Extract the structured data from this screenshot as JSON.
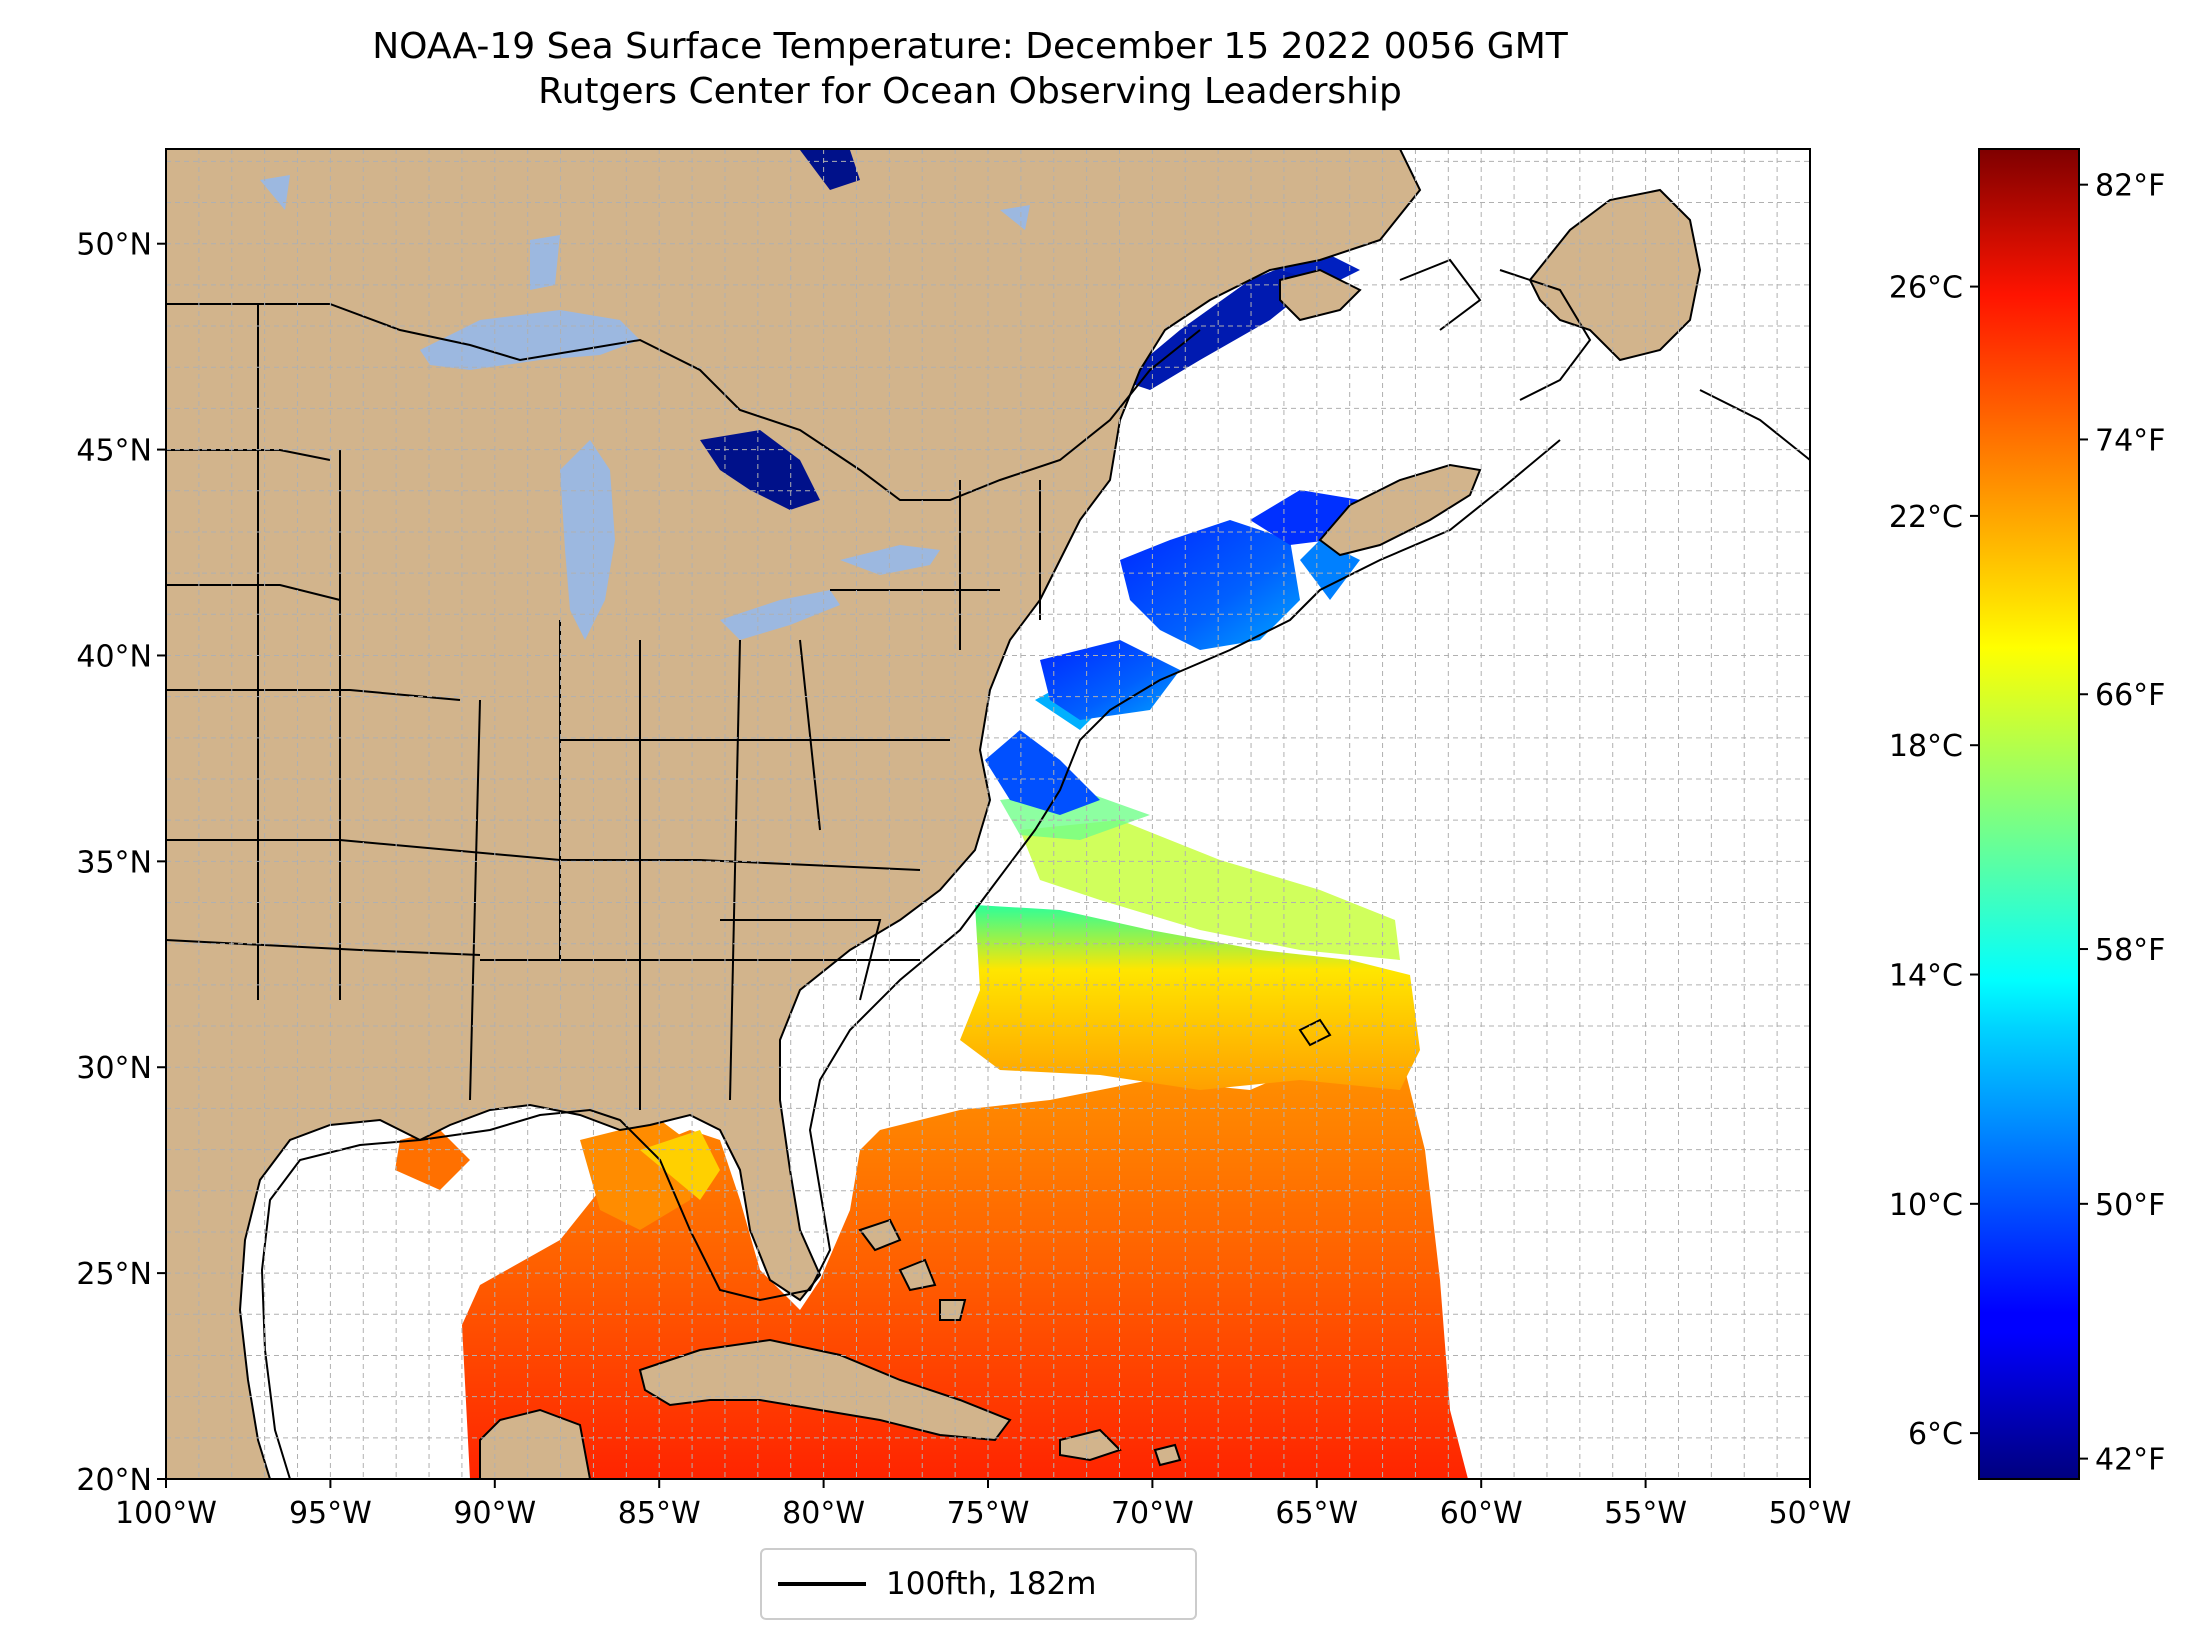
{
  "title": {
    "line1": "NOAA-19 Sea Surface Temperature: December 15 2022 0056 GMT",
    "line2": "Rutgers Center for Ocean Observing Leadership"
  },
  "map": {
    "extent": {
      "lon": [
        -100,
        -50
      ],
      "lat": [
        20,
        52.3
      ]
    },
    "latitude_ticks": [
      "20°N",
      "25°N",
      "30°N",
      "35°N",
      "40°N",
      "45°N",
      "50°N"
    ],
    "latitude_values": [
      20,
      25,
      30,
      35,
      40,
      45,
      50
    ],
    "longitude_ticks": [
      "100°W",
      "95°W",
      "90°W",
      "85°W",
      "80°W",
      "75°W",
      "70°W",
      "65°W",
      "60°W",
      "55°W",
      "50°W"
    ],
    "longitude_values": [
      -100,
      -95,
      -90,
      -85,
      -80,
      -75,
      -70,
      -65,
      -60,
      -55,
      -50
    ],
    "land_color": "#d2b48c",
    "lake_color": "#9cb8e0",
    "grid": true
  },
  "colorbar": {
    "colormap": "jet",
    "range_c": [
      5.2,
      28.4
    ],
    "celsius_ticks": [
      "6°C",
      "10°C",
      "14°C",
      "18°C",
      "22°C",
      "26°C"
    ],
    "celsius_values": [
      6,
      10,
      14,
      18,
      22,
      26
    ],
    "fahrenheit_ticks": [
      "42°F",
      "50°F",
      "58°F",
      "66°F",
      "74°F",
      "82°F"
    ],
    "fahrenheit_values": [
      42,
      50,
      58,
      66,
      74,
      82
    ]
  },
  "legend": {
    "label": "100fth, 182m",
    "line_color": "#000000"
  }
}
